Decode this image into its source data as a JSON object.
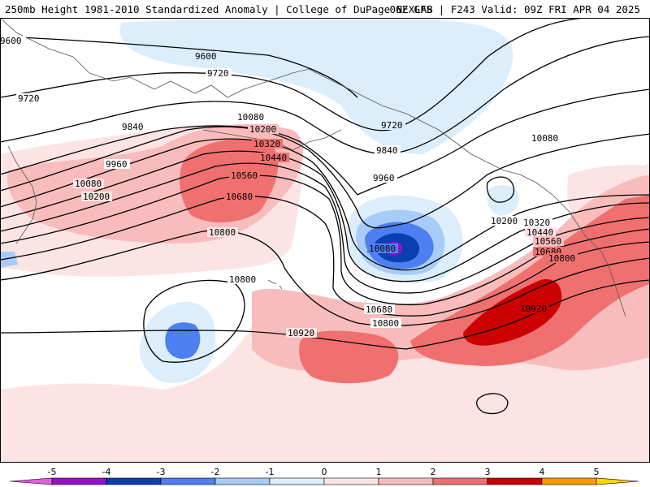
{
  "header": {
    "title_left": "250mb Height 1981-2010 Standardized Anomaly | College of DuPage NEXLAB",
    "title_right": "06Z GFS | F243 Valid: 09Z FRI APR 04 2025"
  },
  "contour_labels": [
    {
      "id": "c9600a",
      "text": "9600"
    },
    {
      "id": "c9600b",
      "text": "9600"
    },
    {
      "id": "c9720a",
      "text": "9720"
    },
    {
      "id": "c9720b",
      "text": "9720"
    },
    {
      "id": "c9720c",
      "text": "9720"
    },
    {
      "id": "c9840a",
      "text": "9840"
    },
    {
      "id": "c9840b",
      "text": "9840"
    },
    {
      "id": "c9960a",
      "text": "9960"
    },
    {
      "id": "c9960b",
      "text": "9960"
    },
    {
      "id": "c10080a",
      "text": "10080"
    },
    {
      "id": "c10080b",
      "text": "10080"
    },
    {
      "id": "c10080c",
      "text": "10080"
    },
    {
      "id": "c10080d",
      "text": "10080"
    },
    {
      "id": "c10200a",
      "text": "10200"
    },
    {
      "id": "c10200b",
      "text": "10200"
    },
    {
      "id": "c10200c",
      "text": "10200"
    },
    {
      "id": "c10320a",
      "text": "10320"
    },
    {
      "id": "c10320b",
      "text": "10320"
    },
    {
      "id": "c10440a",
      "text": "10440"
    },
    {
      "id": "c10440b",
      "text": "10440"
    },
    {
      "id": "c10560a",
      "text": "10560"
    },
    {
      "id": "c10560b",
      "text": "10560"
    },
    {
      "id": "c10680a",
      "text": "10680"
    },
    {
      "id": "c10680b",
      "text": "10680"
    },
    {
      "id": "c10680c",
      "text": "10680"
    },
    {
      "id": "c10800a",
      "text": "10800"
    },
    {
      "id": "c10800b",
      "text": "10800"
    },
    {
      "id": "c10800c",
      "text": "10800"
    },
    {
      "id": "c10800d",
      "text": "10800"
    },
    {
      "id": "c10920a",
      "text": "10920"
    },
    {
      "id": "c10920b",
      "text": "10920"
    }
  ],
  "colorbar": {
    "ticks": [
      "-5",
      "-4",
      "-3",
      "-2",
      "-1",
      "0",
      "1",
      "2",
      "3",
      "4",
      "5"
    ],
    "colors": {
      "lt_neg5": "#e060e0",
      "neg5_neg4": "#9a10c8",
      "neg4_neg3": "#0a3fb0",
      "neg3_neg2": "#4d7ff0",
      "neg2_neg1": "#a8ccf8",
      "neg1_0": "#dceefc",
      "zero": "#ffffff",
      "pos0_1": "#fde4e4",
      "pos1_2": "#f9bcbc",
      "pos2_3": "#f07070",
      "pos3_4": "#cc0000",
      "pos4_5": "#ff9900",
      "gt_pos5": "#ffd700"
    }
  }
}
